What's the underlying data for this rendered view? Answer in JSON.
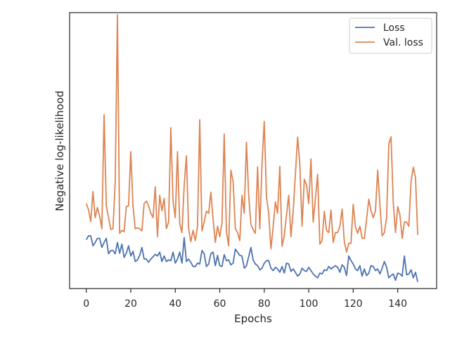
{
  "chart_data": {
    "type": "line",
    "title": "",
    "xlabel": "Epochs",
    "ylabel": "Negative log-likelihood",
    "xlim": [
      -7.5,
      157.5
    ],
    "ylim": [
      0,
      100
    ],
    "y_ticks_shown": false,
    "x_ticks": [
      0,
      20,
      40,
      60,
      80,
      100,
      120,
      140
    ],
    "x_tick_labels": [
      "0",
      "20",
      "40",
      "60",
      "80",
      "100",
      "120",
      "140"
    ],
    "grid": false,
    "legend_position": "top-right",
    "x": [
      0,
      1,
      2,
      3,
      4,
      5,
      6,
      7,
      8,
      9,
      10,
      11,
      12,
      13,
      14,
      15,
      16,
      17,
      18,
      19,
      20,
      21,
      22,
      23,
      24,
      25,
      26,
      27,
      28,
      29,
      30,
      31,
      32,
      33,
      34,
      35,
      36,
      37,
      38,
      39,
      40,
      41,
      42,
      43,
      44,
      45,
      46,
      47,
      48,
      49,
      50,
      51,
      52,
      53,
      54,
      55,
      56,
      57,
      58,
      59,
      60,
      61,
      62,
      63,
      64,
      65,
      66,
      67,
      68,
      69,
      70,
      71,
      72,
      73,
      74,
      75,
      76,
      77,
      78,
      79,
      80,
      81,
      82,
      83,
      84,
      85,
      86,
      87,
      88,
      89,
      90,
      91,
      92,
      93,
      94,
      95,
      96,
      97,
      98,
      99,
      100,
      101,
      102,
      103,
      104,
      105,
      106,
      107,
      108,
      109,
      110,
      111,
      112,
      113,
      114,
      115,
      116,
      117,
      118,
      119,
      120,
      121,
      122,
      123,
      124,
      125,
      126,
      127,
      128,
      129,
      130,
      131,
      132,
      133,
      134,
      135,
      136,
      137,
      138,
      139,
      140,
      141,
      142,
      143,
      144,
      145,
      146,
      147,
      148,
      149
    ],
    "series": [
      {
        "name": "Loss",
        "color": "#4c72b0",
        "values": [
          17.7,
          19.1,
          19.1,
          15.5,
          16.7,
          18.2,
          18.2,
          14.9,
          16.7,
          18.2,
          12.6,
          13.8,
          13.8,
          12.6,
          16.7,
          12.8,
          16.1,
          11.3,
          12.8,
          15.5,
          11.8,
          13.5,
          9.8,
          10.4,
          12.0,
          14.9,
          10.7,
          10.7,
          9.5,
          10.7,
          11.5,
          12.4,
          11.8,
          13.2,
          9.8,
          11.8,
          9.8,
          10.4,
          10.1,
          13.2,
          9.2,
          10.7,
          13.2,
          9.2,
          18.5,
          9.8,
          10.7,
          9.5,
          8.0,
          8.0,
          9.2,
          8.9,
          13.8,
          12.6,
          8.0,
          8.9,
          12.6,
          13.2,
          8.3,
          12.0,
          8.3,
          8.0,
          12.3,
          10.1,
          10.4,
          8.6,
          9.2,
          14.3,
          13.2,
          12.0,
          11.8,
          7.4,
          8.3,
          11.5,
          14.9,
          10.4,
          8.9,
          8.3,
          6.8,
          7.4,
          9.2,
          10.1,
          10.1,
          7.4,
          6.5,
          7.7,
          7.1,
          5.9,
          8.0,
          5.6,
          9.2,
          8.9,
          6.2,
          7.1,
          5.9,
          4.5,
          5.3,
          7.4,
          6.5,
          6.2,
          7.7,
          6.5,
          5.3,
          4.5,
          3.9,
          5.6,
          5.3,
          6.8,
          6.5,
          8.0,
          7.1,
          7.7,
          8.3,
          7.7,
          5.9,
          8.6,
          7.7,
          4.7,
          11.8,
          10.1,
          8.9,
          7.1,
          6.5,
          8.3,
          4.5,
          7.1,
          4.7,
          5.6,
          8.3,
          8.0,
          6.5,
          7.1,
          5.3,
          7.4,
          9.8,
          7.7,
          3.9,
          4.7,
          5.3,
          3.0,
          5.6,
          5.3,
          4.5,
          11.8,
          5.0,
          5.3,
          6.8,
          3.9,
          5.9,
          2.4
        ]
      },
      {
        "name": "Val. loss",
        "color": "#dd8452",
        "values": [
          30.8,
          28.5,
          24.3,
          35.2,
          25.7,
          29.4,
          26.2,
          21.7,
          63.0,
          30.0,
          25.7,
          21.4,
          21.7,
          38.8,
          99.2,
          20.0,
          21.1,
          20.6,
          29.7,
          30.0,
          49.6,
          30.0,
          21.7,
          22.0,
          21.7,
          20.9,
          30.8,
          31.7,
          30.0,
          27.3,
          25.7,
          36.9,
          18.8,
          33.8,
          28.2,
          32.7,
          21.7,
          24.1,
          58.3,
          31.7,
          25.7,
          49.6,
          23.5,
          20.3,
          37.2,
          48.1,
          21.7,
          17.0,
          21.1,
          17.4,
          22.6,
          61.2,
          20.9,
          24.1,
          28.0,
          27.3,
          34.9,
          25.2,
          16.7,
          22.6,
          18.8,
          23.8,
          56.0,
          20.6,
          15.5,
          42.9,
          38.8,
          21.7,
          20.3,
          17.4,
          33.8,
          27.3,
          53.0,
          33.8,
          23.2,
          21.4,
          20.0,
          44.1,
          21.7,
          45.3,
          60.6,
          33.2,
          27.3,
          14.4,
          22.3,
          31.4,
          27.3,
          44.3,
          15.3,
          19.1,
          26.7,
          33.8,
          18.8,
          27.9,
          41.4,
          54.9,
          45.0,
          22.6,
          39.6,
          37.6,
          30.8,
          47.0,
          24.1,
          32.7,
          41.4,
          16.1,
          17.4,
          28.0,
          21.1,
          20.3,
          28.5,
          16.7,
          20.3,
          20.3,
          22.6,
          28.8,
          17.0,
          13.2,
          16.4,
          16.4,
          30.5,
          22.3,
          20.0,
          22.6,
          18.2,
          18.2,
          25.2,
          32.4,
          28.2,
          25.7,
          28.2,
          42.9,
          30.5,
          19.1,
          20.3,
          25.7,
          52.4,
          55.0,
          31.1,
          20.3,
          29.7,
          26.7,
          18.2,
          24.1,
          24.1,
          22.6,
          38.8,
          44.0,
          40.2,
          19.4
        ]
      }
    ]
  }
}
